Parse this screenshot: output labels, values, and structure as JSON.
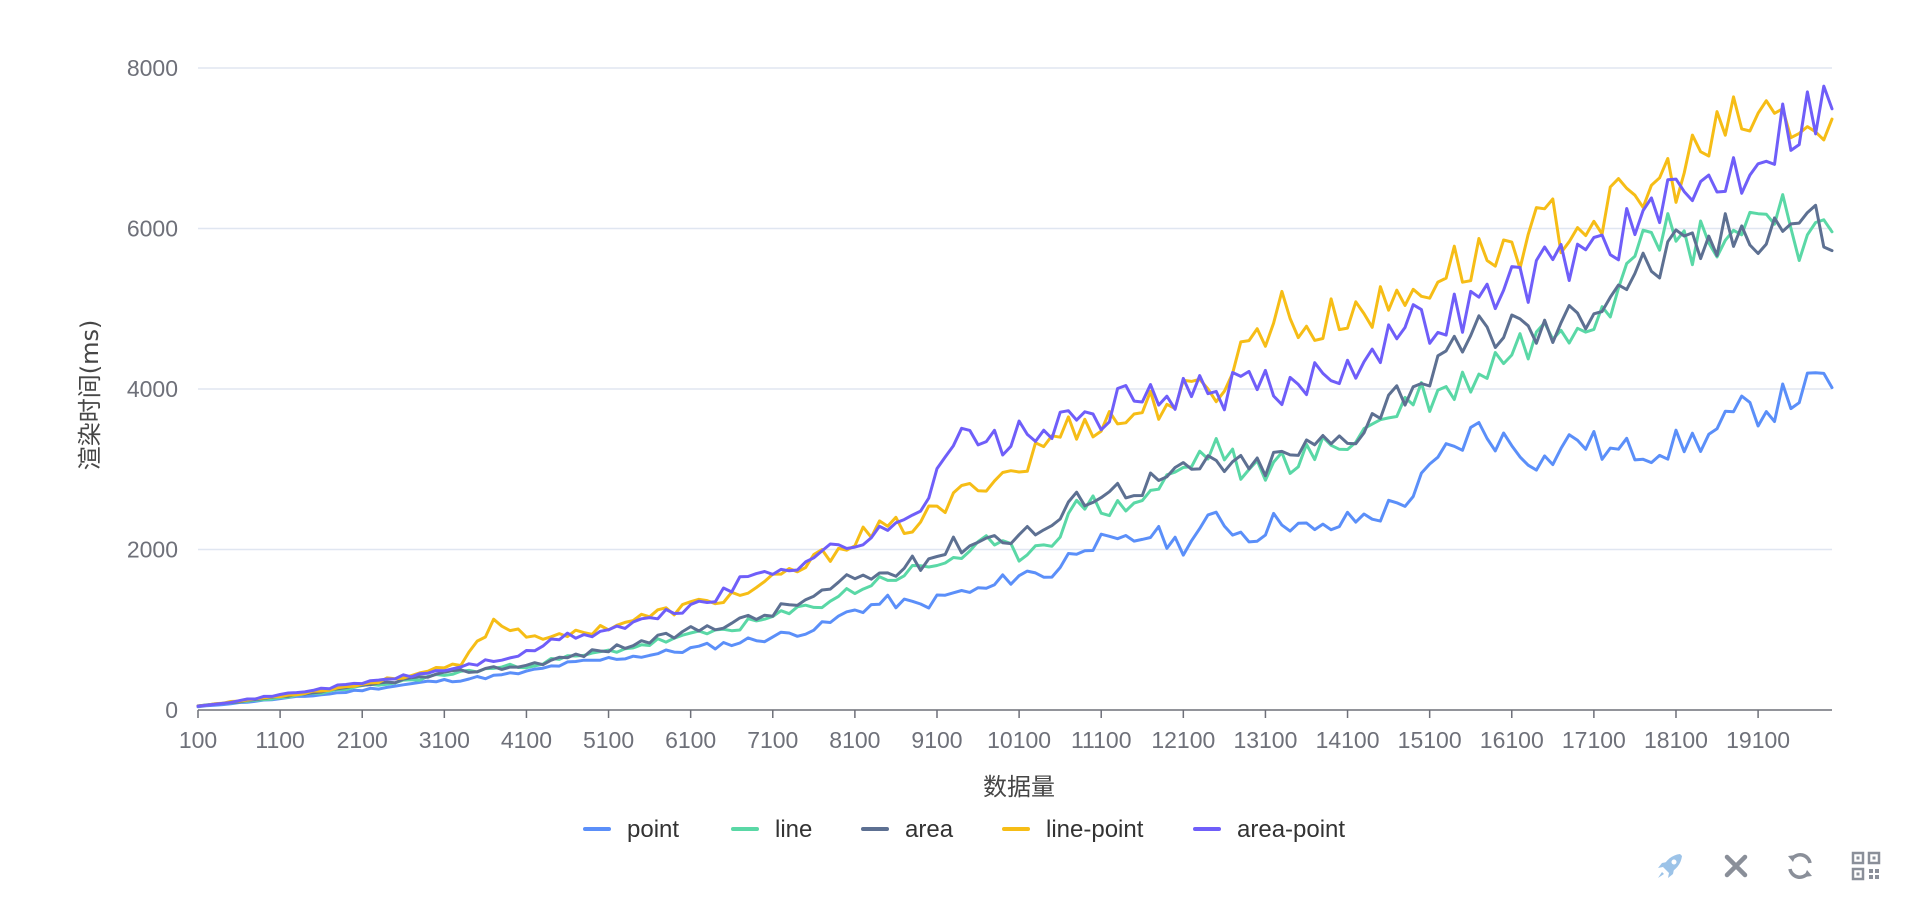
{
  "chart_data": {
    "type": "line",
    "xlabel": "数据量",
    "ylabel": "渲染时间(ms)",
    "ylim": [
      0,
      8000
    ],
    "yticks": [
      "0",
      "2000",
      "4000",
      "6000",
      "8000"
    ],
    "xtick_labels": [
      "100",
      "1100",
      "2100",
      "3100",
      "4100",
      "5100",
      "6100",
      "7100",
      "8100",
      "9100",
      "10100",
      "11100",
      "12100",
      "13100",
      "14100",
      "15100",
      "16100",
      "17100",
      "18100",
      "19100"
    ],
    "x_start": 100,
    "x_step": 100,
    "grid": true,
    "legend_position": "bottom",
    "series": [
      {
        "name": "point",
        "color": "#5b8ff9",
        "values": [
          40,
          45,
          50,
          60,
          65,
          75,
          80,
          85,
          90,
          100,
          180,
          120,
          110,
          120,
          130,
          140,
          145,
          150,
          160,
          170,
          180,
          190,
          200,
          210,
          220,
          230,
          240,
          250,
          260,
          270,
          280,
          290,
          300,
          310,
          320,
          330,
          340,
          350,
          360,
          370,
          380,
          400,
          410,
          420,
          430,
          440,
          450,
          460,
          470,
          480,
          490,
          510,
          520,
          540,
          550,
          560,
          580,
          590,
          600,
          610,
          620,
          640,
          660,
          680,
          700,
          720,
          740,
          760,
          780,
          800,
          820,
          840,
          860,
          880,
          900,
          920,
          940,
          960,
          980,
          1000,
          1020,
          1040,
          1060,
          1080,
          1100,
          1120,
          1140,
          1160,
          1180,
          1200,
          1220,
          1240,
          1260,
          1280,
          1300,
          1320,
          1340,
          1360,
          1380,
          1400,
          1420,
          1440,
          1460,
          1480,
          1500,
          1520,
          1540,
          1560,
          1580,
          1600,
          1620,
          1640,
          1660,
          1680,
          1700,
          1720,
          1740,
          1760,
          1780,
          1800,
          1820,
          1840,
          1860,
          1880,
          1900,
          1920,
          1940,
          1960,
          1980,
          2000,
          2020,
          2040,
          2060,
          2080,
          2100,
          2120,
          2140,
          2160,
          2180,
          2200,
          2220,
          2240,
          2260,
          2280,
          2300,
          2320,
          2340,
          2360,
          2380,
          2400,
          2420,
          2440,
          2460,
          2480,
          2500,
          2520,
          2540,
          2560,
          2580,
          2600,
          2620,
          2640,
          2660,
          2680,
          2700,
          2720,
          2740,
          2760,
          2780,
          2800,
          2820,
          2840,
          2860,
          2880,
          2900,
          2920,
          2940,
          2960,
          2980,
          3000,
          3020,
          3040,
          3060,
          3080,
          3100,
          3120,
          3140,
          3160,
          3180,
          3200,
          3220,
          3240,
          3260,
          3280,
          3300,
          3320,
          3340,
          3360,
          3380,
          3400,
          3420,
          3440,
          3460,
          3480,
          3500,
          3520,
          3540,
          3560,
          3580,
          3600,
          3620,
          3640,
          3660,
          3680,
          3700,
          3720,
          3740,
          3760,
          3780,
          3800,
          3820
        ]
      },
      {
        "name": "line",
        "color": "#5ad8a6",
        "values": []
      },
      {
        "name": "area",
        "color": "#5d7092",
        "values": []
      },
      {
        "name": "line-point",
        "color": "#f6bd16",
        "values": []
      },
      {
        "name": "area-point",
        "color": "#6f5ef9",
        "values": []
      }
    ]
  },
  "toolbox": {
    "icons": [
      "rocket-icon",
      "close-icon",
      "refresh-icon",
      "qrcode-icon"
    ]
  }
}
